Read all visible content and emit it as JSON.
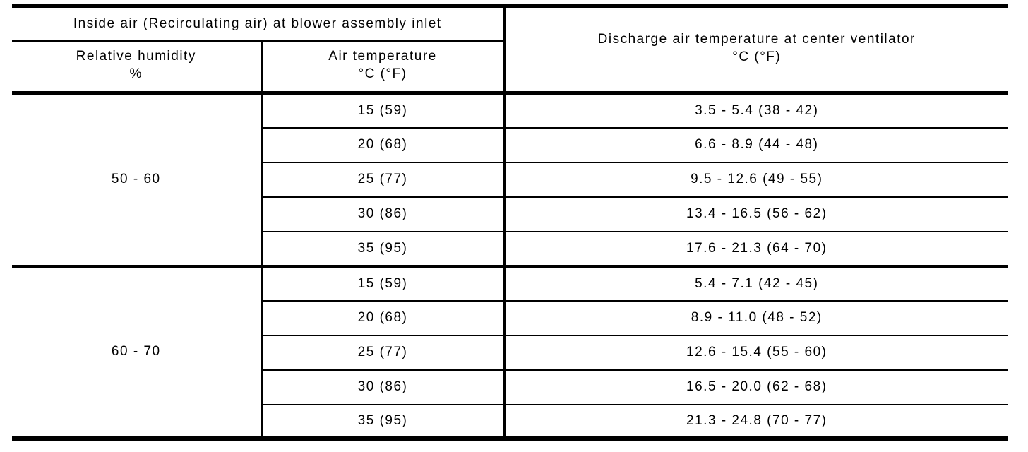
{
  "table": {
    "header": {
      "inside_air": "Inside air (Recirculating air) at blower assembly inlet",
      "relative_humidity": {
        "line1": "Relative humidity",
        "line2": "%"
      },
      "air_temperature": {
        "line1": "Air temperature",
        "line2": "°C (°F)"
      },
      "discharge": {
        "line1": "Discharge air temperature at center ventilator",
        "line2": "°C (°F)"
      }
    },
    "groups": [
      {
        "relative_humidity": "50 - 60",
        "rows": [
          {
            "air_temperature": "15 (59)",
            "discharge": "3.5 - 5.4 (38 - 42)"
          },
          {
            "air_temperature": "20 (68)",
            "discharge": "6.6 - 8.9 (44 - 48)"
          },
          {
            "air_temperature": "25 (77)",
            "discharge": "9.5 - 12.6 (49 - 55)"
          },
          {
            "air_temperature": "30 (86)",
            "discharge": "13.4 - 16.5 (56 - 62)"
          },
          {
            "air_temperature": "35 (95)",
            "discharge": "17.6 - 21.3 (64 - 70)"
          }
        ]
      },
      {
        "relative_humidity": "60 - 70",
        "rows": [
          {
            "air_temperature": "15 (59)",
            "discharge": "5.4 - 7.1 (42 - 45)"
          },
          {
            "air_temperature": "20 (68)",
            "discharge": "8.9 - 11.0 (48 - 52)"
          },
          {
            "air_temperature": "25 (77)",
            "discharge": "12.6 - 15.4 (55 - 60)"
          },
          {
            "air_temperature": "30 (86)",
            "discharge": "16.5 - 20.0 (62 - 68)"
          },
          {
            "air_temperature": "35 (95)",
            "discharge": "21.3 - 24.8 (70 - 77)"
          }
        ]
      }
    ]
  },
  "colors": {
    "line": "#000000",
    "text": "#000000",
    "background": "#ffffff"
  }
}
